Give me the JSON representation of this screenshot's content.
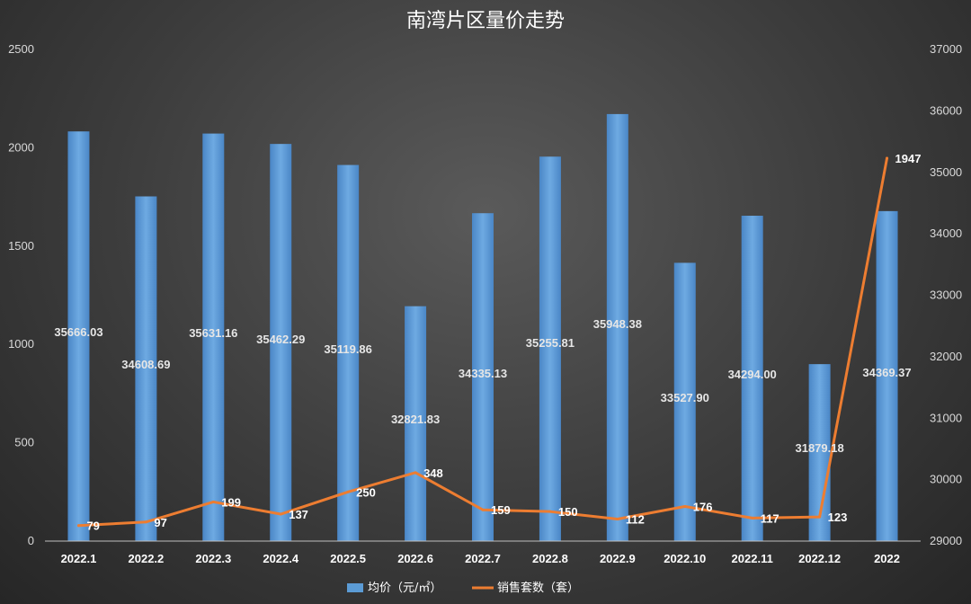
{
  "chart_data": {
    "type": "bar",
    "title": "南湾片区量价走势",
    "categories": [
      "2022.1",
      "2022.2",
      "2022.3",
      "2022.4",
      "2022.5",
      "2022.6",
      "2022.7",
      "2022.8",
      "2022.9",
      "2022.10",
      "2022.11",
      "2022.12",
      "2022"
    ],
    "series": [
      {
        "name": "均价（元/㎡）",
        "type": "bar",
        "axis": "right",
        "color": "#5b9bd5",
        "values": [
          35666.03,
          34608.69,
          35631.16,
          35462.29,
          35119.86,
          32821.83,
          34335.13,
          35255.81,
          35948.38,
          33527.9,
          34294.0,
          31879.18,
          34369.37
        ],
        "labels": [
          "35666.03",
          "34608.69",
          "35631.16",
          "35462.29",
          "35119.86",
          "32821.83",
          "34335.13",
          "35255.81",
          "35948.38",
          "33527.90",
          "34294.00",
          "31879.18",
          "34369.37"
        ]
      },
      {
        "name": "销售套数（套）",
        "type": "line",
        "axis": "left",
        "color": "#ed7d31",
        "values": [
          79,
          97,
          199,
          137,
          250,
          348,
          159,
          150,
          112,
          176,
          117,
          123,
          1947
        ],
        "labels": [
          "79",
          "97",
          "199",
          "137",
          "250",
          "348",
          "159",
          "150",
          "112",
          "176",
          "117",
          "123",
          "1947"
        ]
      }
    ],
    "y_left": {
      "min": 0,
      "max": 2500,
      "ticks": [
        "0",
        "500",
        "1000",
        "1500",
        "2000",
        "2500"
      ]
    },
    "y_right": {
      "min": 29000,
      "max": 37000,
      "ticks": [
        "29000",
        "30000",
        "31000",
        "32000",
        "33000",
        "34000",
        "35000",
        "36000",
        "37000"
      ]
    },
    "legend_position": "bottom",
    "grid": false
  }
}
